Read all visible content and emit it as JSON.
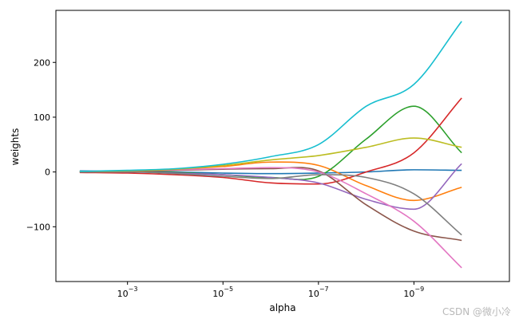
{
  "chart_data": {
    "type": "line",
    "title": "",
    "xlabel": "alpha",
    "ylabel": "weights",
    "x_scale": "log",
    "x_reversed": true,
    "xlim": [
      0.03162,
      1e-11
    ],
    "ylim": [
      -200,
      295
    ],
    "grid": false,
    "legend": "none",
    "x_ticks": [
      {
        "value": 0.001,
        "label": "10"
      },
      {
        "value": 1e-05,
        "label": "10"
      },
      {
        "value": 1e-07,
        "label": "10"
      },
      {
        "value": 1e-09,
        "label": "10"
      }
    ],
    "x_tick_exponents": [
      "−3",
      "−5",
      "−7",
      "−9"
    ],
    "y_ticks": [
      {
        "value": -100,
        "label": "−100"
      },
      {
        "value": 0,
        "label": "0"
      },
      {
        "value": 100,
        "label": "100"
      },
      {
        "value": 200,
        "label": "200"
      }
    ],
    "x": [
      0.01,
      0.001,
      0.0001,
      1e-05,
      1e-06,
      1e-07,
      1e-08,
      1e-09,
      1e-10
    ],
    "series": [
      {
        "color": "#1f77b4",
        "values": [
          2,
          1,
          0,
          -2,
          -3,
          -2,
          0,
          4,
          3
        ]
      },
      {
        "color": "#ff7f0e",
        "values": [
          0,
          2,
          5,
          10,
          18,
          12,
          -25,
          -52,
          -28
        ]
      },
      {
        "color": "#2ca02c",
        "values": [
          0,
          0,
          -1,
          -5,
          -10,
          -8,
          60,
          120,
          35
        ]
      },
      {
        "color": "#d62728",
        "values": [
          -1,
          -2,
          -5,
          -10,
          -20,
          -22,
          0,
          35,
          135
        ]
      },
      {
        "color": "#9467bd",
        "values": [
          0,
          0,
          -2,
          -5,
          -10,
          -20,
          -50,
          -68,
          15
        ]
      },
      {
        "color": "#8c564b",
        "values": [
          0,
          1,
          3,
          5,
          6,
          2,
          -60,
          -108,
          -125
        ]
      },
      {
        "color": "#e377c2",
        "values": [
          1,
          2,
          4,
          6,
          8,
          0,
          -40,
          -90,
          -175
        ]
      },
      {
        "color": "#7f7f7f",
        "values": [
          0,
          0,
          -3,
          -8,
          -12,
          -5,
          -10,
          -40,
          -115
        ]
      },
      {
        "color": "#bcbd22",
        "values": [
          1,
          2,
          5,
          12,
          22,
          30,
          45,
          62,
          45
        ]
      },
      {
        "color": "#17becf",
        "values": [
          1,
          3,
          6,
          14,
          28,
          50,
          120,
          160,
          275
        ]
      }
    ]
  },
  "watermark": "CSDN @微小冷"
}
